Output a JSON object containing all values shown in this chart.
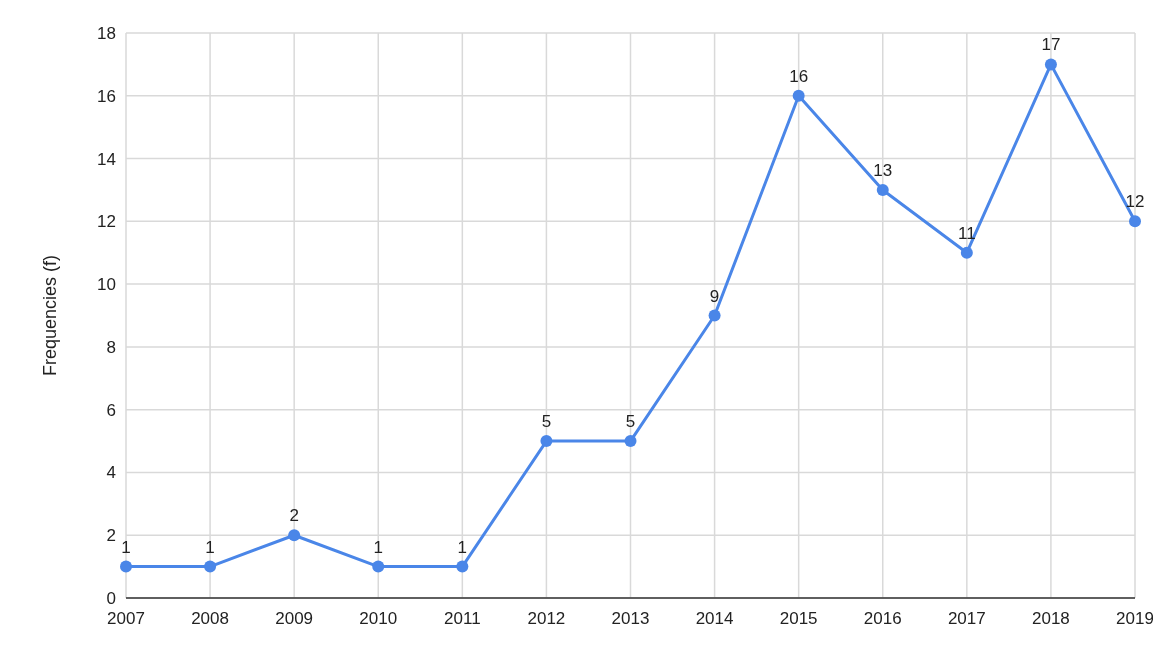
{
  "chart_data": {
    "type": "line",
    "ylabel": "Frequencies (f)",
    "x": [
      2007,
      2008,
      2009,
      2010,
      2011,
      2012,
      2013,
      2014,
      2015,
      2016,
      2017,
      2018,
      2019
    ],
    "series": [
      {
        "color": "#4a86e8",
        "values": [
          1,
          1,
          2,
          1,
          1,
          5,
          5,
          9,
          16,
          13,
          11,
          17,
          12
        ]
      }
    ],
    "xlim": [
      2007,
      2019
    ],
    "xticks": [
      2007,
      2008,
      2009,
      2010,
      2011,
      2012,
      2013,
      2014,
      2015,
      2016,
      2017,
      2018,
      2019
    ],
    "ylim": [
      0,
      18
    ],
    "yticks": [
      0,
      2,
      4,
      6,
      8,
      10,
      12,
      14,
      16,
      18
    ],
    "grid": true,
    "marker": "circle",
    "line_style": "solid",
    "data_labels": true
  }
}
